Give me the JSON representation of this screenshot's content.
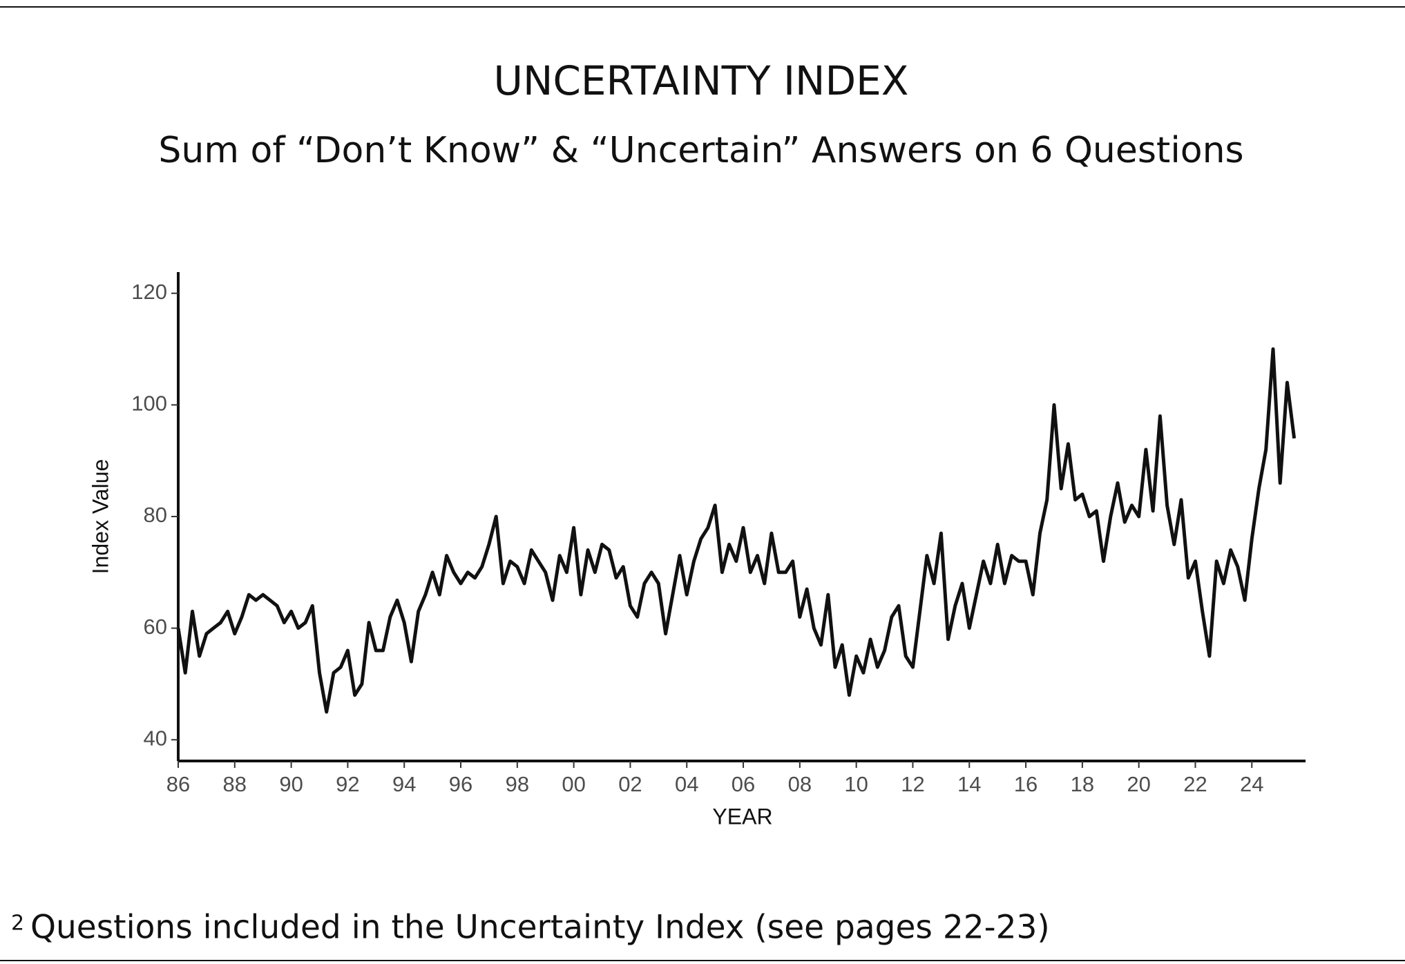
{
  "chart_data": {
    "type": "line",
    "title": "UNCERTAINTY INDEX",
    "subtitle": "Sum of “Don’t Know” & “Uncertain” Answers on 6 Questions",
    "x_label": "YEAR",
    "y_label": "Index Value",
    "color": "#111111",
    "x": [
      1986,
      1986.25,
      1986.5,
      1986.75,
      1987,
      1987.25,
      1987.5,
      1987.75,
      1988,
      1988.25,
      1988.5,
      1988.75,
      1989,
      1989.25,
      1989.5,
      1989.75,
      1990,
      1990.25,
      1990.5,
      1990.75,
      1991,
      1991.25,
      1991.5,
      1991.75,
      1992,
      1992.25,
      1992.5,
      1992.75,
      1993,
      1993.25,
      1993.5,
      1993.75,
      1994,
      1994.25,
      1994.5,
      1994.75,
      1995,
      1995.25,
      1995.5,
      1995.75,
      1996,
      1996.25,
      1996.5,
      1996.75,
      1997,
      1997.25,
      1997.5,
      1997.75,
      1998,
      1998.25,
      1998.5,
      1998.75,
      1999,
      1999.25,
      1999.5,
      1999.75,
      2000,
      2000.25,
      2000.5,
      2000.75,
      2001,
      2001.25,
      2001.5,
      2001.75,
      2002,
      2002.25,
      2002.5,
      2002.75,
      2003,
      2003.25,
      2003.5,
      2003.75,
      2004,
      2004.25,
      2004.5,
      2004.75,
      2005,
      2005.25,
      2005.5,
      2005.75,
      2006,
      2006.25,
      2006.5,
      2006.75,
      2007,
      2007.25,
      2007.5,
      2007.75,
      2008,
      2008.25,
      2008.5,
      2008.75,
      2009,
      2009.25,
      2009.5,
      2009.75,
      2010,
      2010.25,
      2010.5,
      2010.75,
      2011,
      2011.25,
      2011.5,
      2011.75,
      2012,
      2012.25,
      2012.5,
      2012.75,
      2013,
      2013.25,
      2013.5,
      2013.75,
      2014,
      2014.25,
      2014.5,
      2014.75,
      2015,
      2015.25,
      2015.5,
      2015.75,
      2016,
      2016.25,
      2016.5,
      2016.75,
      2017,
      2017.25,
      2017.5,
      2017.75,
      2018,
      2018.25,
      2018.5,
      2018.75,
      2019,
      2019.25,
      2019.5,
      2019.75,
      2020,
      2020.25,
      2020.5,
      2020.75,
      2021,
      2021.25,
      2021.5,
      2021.75,
      2022,
      2022.25,
      2022.5,
      2022.75,
      2023,
      2023.25,
      2023.5,
      2023.75,
      2024,
      2024.25,
      2024.5,
      2024.75,
      2025,
      2025.25,
      2025.5
    ],
    "values": [
      60,
      52,
      63,
      55,
      59,
      60,
      61,
      63,
      59,
      62,
      66,
      65,
      66,
      65,
      64,
      61,
      63,
      60,
      61,
      64,
      52,
      45,
      52,
      53,
      56,
      48,
      50,
      61,
      56,
      56,
      62,
      65,
      61,
      54,
      63,
      66,
      70,
      66,
      73,
      70,
      68,
      70,
      69,
      71,
      75,
      80,
      68,
      72,
      71,
      68,
      74,
      72,
      70,
      65,
      73,
      70,
      78,
      66,
      74,
      70,
      75,
      74,
      69,
      71,
      64,
      62,
      68,
      70,
      68,
      59,
      66,
      73,
      66,
      72,
      76,
      78,
      82,
      70,
      75,
      72,
      78,
      70,
      73,
      68,
      77,
      70,
      70,
      72,
      62,
      67,
      60,
      57,
      66,
      53,
      57,
      48,
      55,
      52,
      58,
      53,
      56,
      62,
      64,
      55,
      53,
      63,
      73,
      68,
      77,
      58,
      64,
      68,
      60,
      66,
      72,
      68,
      75,
      68,
      73,
      72,
      72,
      66,
      77,
      83,
      100,
      85,
      93,
      83,
      84,
      80,
      81,
      72,
      80,
      86,
      79,
      82,
      80,
      92,
      81,
      98,
      82,
      75,
      83,
      69,
      72,
      63,
      55,
      72,
      68,
      74,
      71,
      65,
      76,
      85,
      92,
      110,
      86,
      104,
      94
    ],
    "xlim": [
      1986,
      2025.9
    ],
    "xticks": [
      {
        "value": 1986,
        "label": "86"
      },
      {
        "value": 1988,
        "label": "88"
      },
      {
        "value": 1990,
        "label": "90"
      },
      {
        "value": 1992,
        "label": "92"
      },
      {
        "value": 1994,
        "label": "94"
      },
      {
        "value": 1996,
        "label": "96"
      },
      {
        "value": 1998,
        "label": "98"
      },
      {
        "value": 2000,
        "label": "00"
      },
      {
        "value": 2002,
        "label": "02"
      },
      {
        "value": 2004,
        "label": "04"
      },
      {
        "value": 2006,
        "label": "06"
      },
      {
        "value": 2008,
        "label": "08"
      },
      {
        "value": 2010,
        "label": "10"
      },
      {
        "value": 2012,
        "label": "12"
      },
      {
        "value": 2014,
        "label": "14"
      },
      {
        "value": 2016,
        "label": "16"
      },
      {
        "value": 2018,
        "label": "18"
      },
      {
        "value": 2020,
        "label": "20"
      },
      {
        "value": 2022,
        "label": "22"
      },
      {
        "value": 2024,
        "label": "24"
      }
    ],
    "ylim": [
      36.2,
      123.8
    ],
    "yticks": [
      40,
      60,
      80,
      100,
      120
    ],
    "grid": false
  },
  "footnote": {
    "marker": "2",
    "text": "Questions included in the Uncertainty Index (see pages 22-23)"
  }
}
